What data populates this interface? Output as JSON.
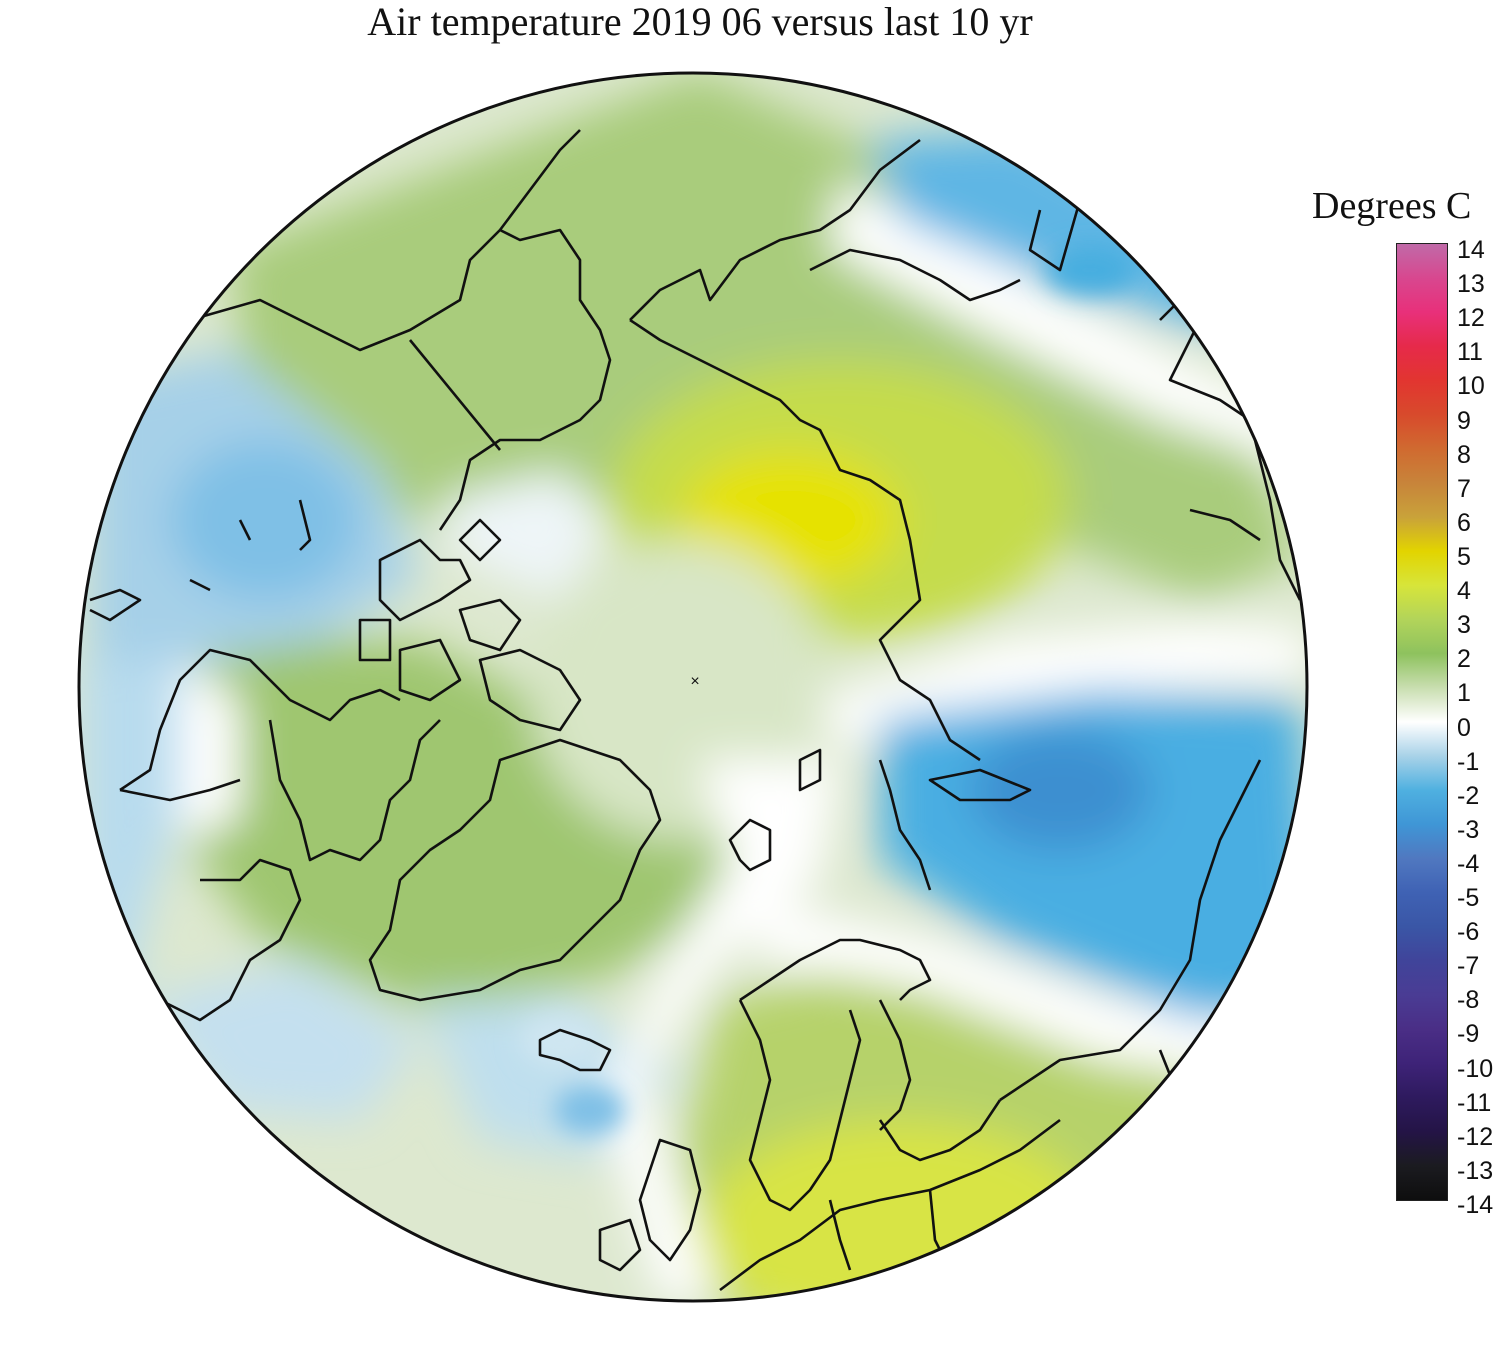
{
  "title": "Air temperature 2019 06 versus last 10 yr",
  "legend": {
    "title": "Degrees C",
    "ticks": [
      "14",
      "13",
      "12",
      "11",
      "10",
      "9",
      "8",
      "7",
      "6",
      "5",
      "4",
      "3",
      "2",
      "1",
      "0",
      "-1",
      "-2",
      "-3",
      "-4",
      "-5",
      "-6",
      "-7",
      "-8",
      "-9",
      "-10",
      "-11",
      "-12",
      "-13",
      "-14"
    ],
    "colors": [
      {
        "value": 14,
        "color": "#c06aa8"
      },
      {
        "value": 13,
        "color": "#d8478f"
      },
      {
        "value": 12,
        "color": "#e8307a"
      },
      {
        "value": 11,
        "color": "#e62a4a"
      },
      {
        "value": 10,
        "color": "#e23530"
      },
      {
        "value": 9,
        "color": "#d84a2c"
      },
      {
        "value": 8,
        "color": "#d06a30"
      },
      {
        "value": 7,
        "color": "#c8843a"
      },
      {
        "value": 6,
        "color": "#c9a23a"
      },
      {
        "value": 5,
        "color": "#e2d400"
      },
      {
        "value": 4,
        "color": "#d7e53a"
      },
      {
        "value": 3,
        "color": "#b2d45a"
      },
      {
        "value": 2,
        "color": "#8ec25e"
      },
      {
        "value": 1,
        "color": "#c9deb0"
      },
      {
        "value": 0,
        "color": "#ffffff"
      },
      {
        "value": -1,
        "color": "#a8d2e8"
      },
      {
        "value": -2,
        "color": "#4fb0e0"
      },
      {
        "value": -3,
        "color": "#3f96d6"
      },
      {
        "value": -4,
        "color": "#5078c0"
      },
      {
        "value": -5,
        "color": "#3f62b4"
      },
      {
        "value": -6,
        "color": "#3a56a6"
      },
      {
        "value": -7,
        "color": "#40449a"
      },
      {
        "value": -8,
        "color": "#4a3c94"
      },
      {
        "value": -9,
        "color": "#4a2e86"
      },
      {
        "value": -10,
        "color": "#3e2378"
      },
      {
        "value": -11,
        "color": "#2e1a5e"
      },
      {
        "value": -12,
        "color": "#241446"
      },
      {
        "value": -13,
        "color": "#1b1b20"
      },
      {
        "value": -14,
        "color": "#0e0e0e"
      }
    ]
  },
  "map": {
    "projection": "north-polar-stereographic",
    "pole_marker": "×"
  }
}
